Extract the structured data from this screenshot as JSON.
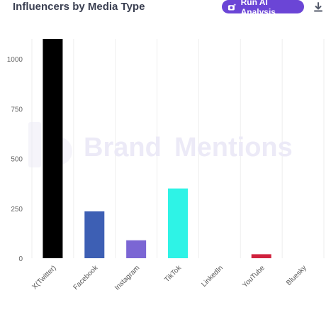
{
  "header": {
    "title": "Influencers by Media Type",
    "ai_button_label": "Run AI Analysis",
    "ai_button_icon": "sparkle-camera-icon",
    "download_icon": "download-icon"
  },
  "watermark": {
    "brand": "Brand",
    "mentions": "Mentions"
  },
  "chart_data": {
    "type": "bar",
    "categories": [
      "X(Twitter)",
      "Facebook",
      "Instagram",
      "TikTok",
      "LinkedIn",
      "YouTube",
      "Bluesky"
    ],
    "values": [
      1100,
      235,
      90,
      350,
      0,
      20,
      0
    ],
    "colors": [
      "#000000",
      "#3d5fb4",
      "#7b66d4",
      "#2ef3e6",
      "#3fbfb0",
      "#d0223e",
      "#3a8de0"
    ],
    "yticks": [
      0,
      250,
      500,
      750,
      1000
    ],
    "ylim": [
      0,
      1100
    ],
    "grid": "vertical"
  }
}
